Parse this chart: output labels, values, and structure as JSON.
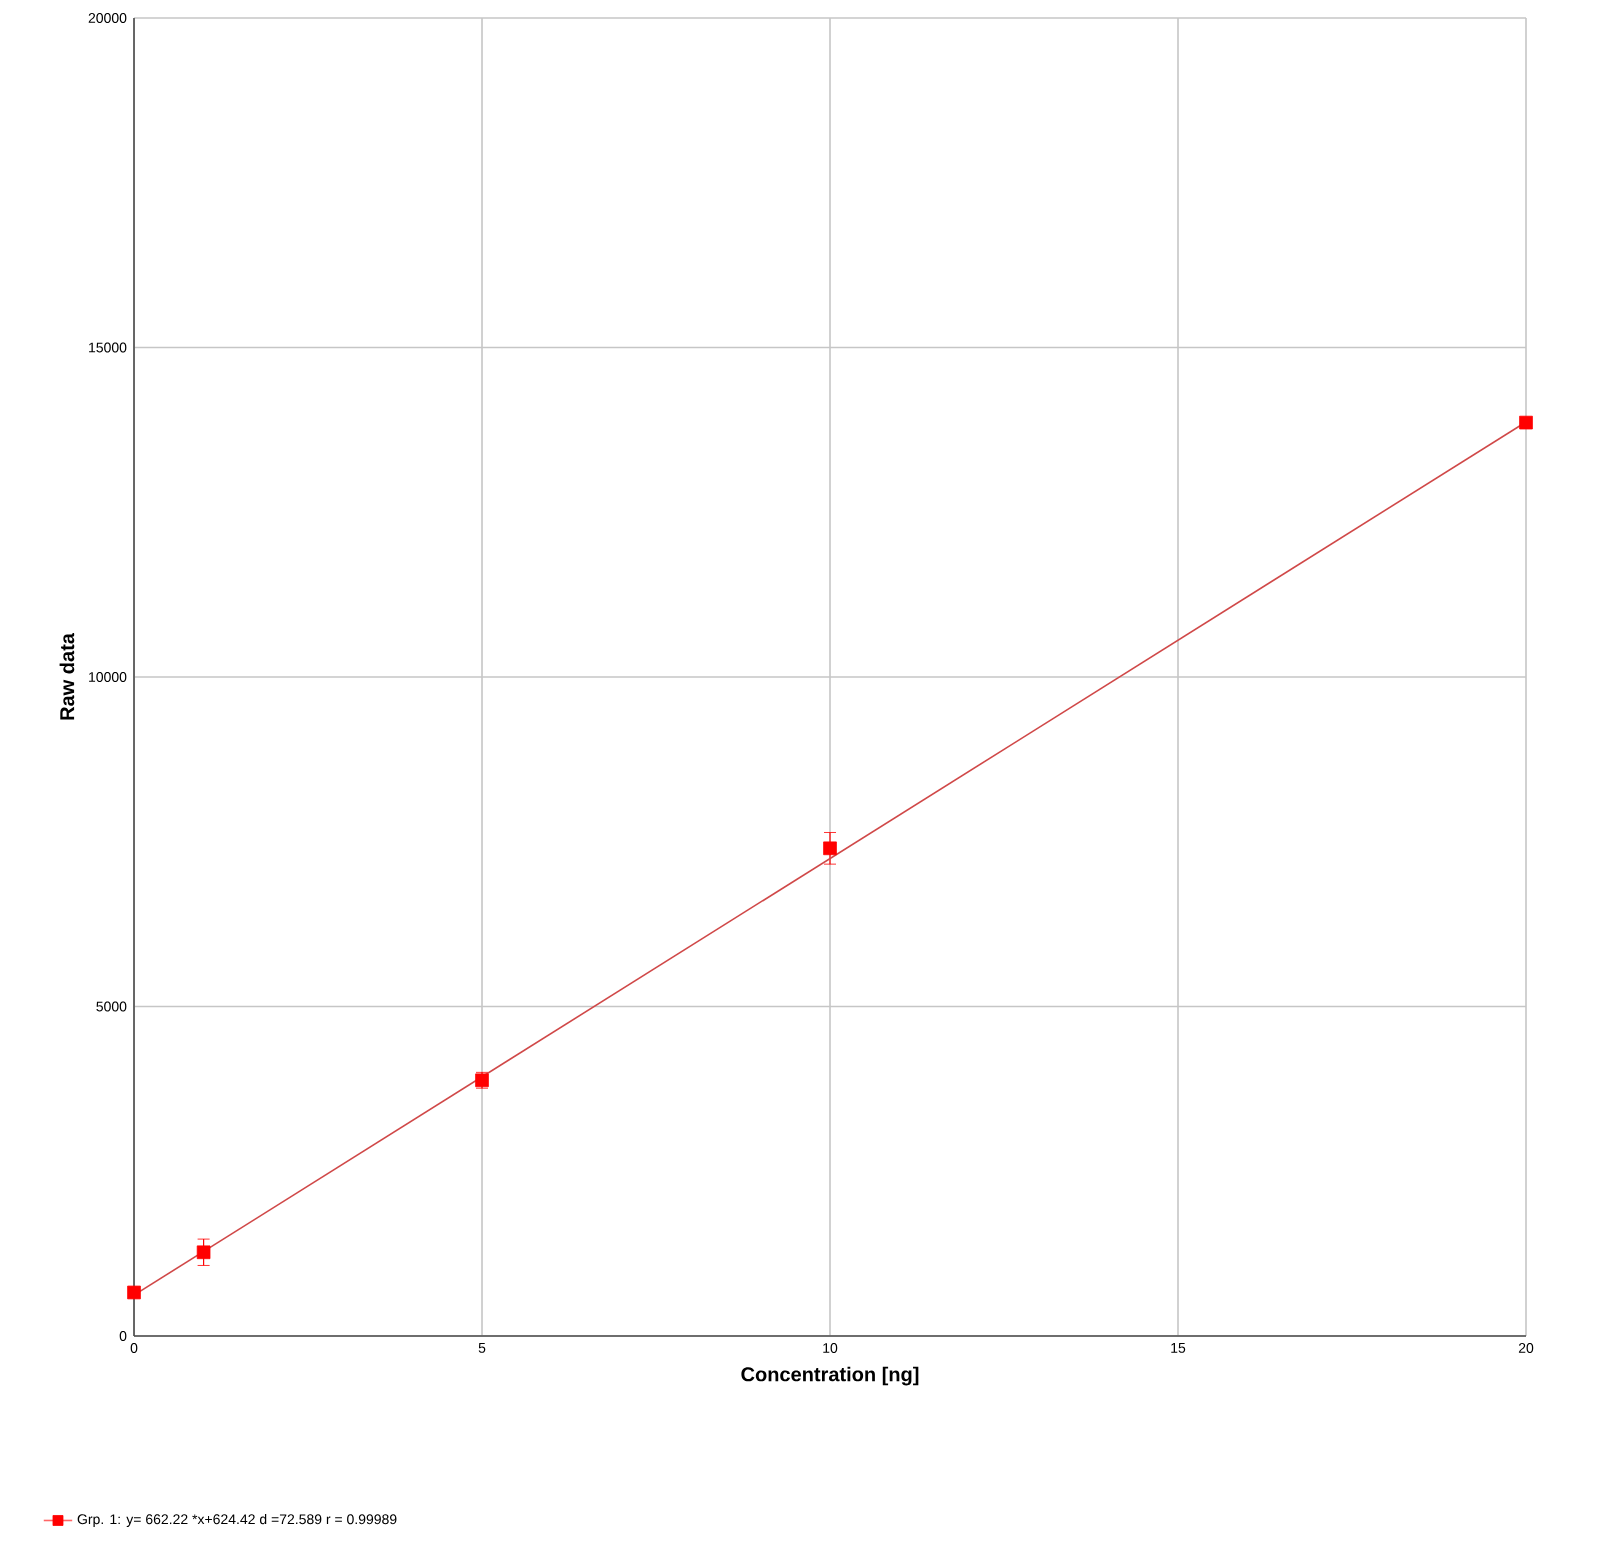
{
  "chart_data": {
    "type": "scatter",
    "xlabel": "Concentration [ng]",
    "ylabel": "Raw data",
    "xlim": [
      0,
      20
    ],
    "ylim": [
      0,
      20000
    ],
    "xticks": [
      0,
      5,
      10,
      15,
      20
    ],
    "yticks": [
      0,
      5000,
      10000,
      15000,
      20000
    ],
    "grid": true,
    "legend": "bottom left",
    "series": [
      {
        "name": "Grp. 1: y= 662.22 *x+624.42  d =72.589  r = 0.99989",
        "marker": "square",
        "color": "#ff0000",
        "x": [
          0,
          1,
          5,
          10,
          20
        ],
        "values": [
          660,
          1270,
          3880,
          7400,
          13860
        ],
        "errors": [
          null,
          200,
          120,
          240,
          null
        ]
      },
      {
        "type": "line",
        "color": "#d04848",
        "x": [
          0,
          20
        ],
        "values": [
          620,
          13870
        ]
      }
    ]
  }
}
